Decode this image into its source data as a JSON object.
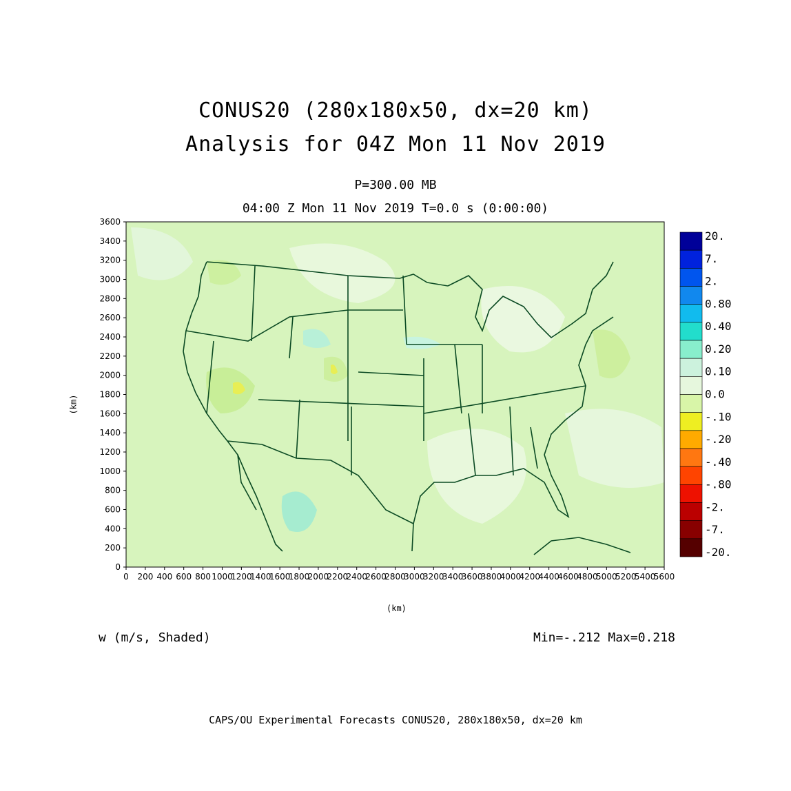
{
  "title": {
    "line1": "CONUS20 (280x180x50, dx=20 km)",
    "line2": "Analysis for 04Z Mon 11 Nov 2019"
  },
  "level": "P=300.00 MB",
  "time": "04:00 Z Mon 11 Nov 2019    T=0.0 s (0:00:00)",
  "variable": "w (m/s, Shaded)",
  "minmax": "Min=-.212 Max=0.218",
  "footer": "CAPS/OU Experimental Forecasts  CONUS20, 280x180x50, dx=20 km",
  "axes": {
    "xlabel": "(km)",
    "ylabel": "(km)",
    "x_ticks": [
      "0",
      "200",
      "400",
      "600",
      "800",
      "1000",
      "1200",
      "1400",
      "1600",
      "1800",
      "2000",
      "2200",
      "2400",
      "2600",
      "2800",
      "3000",
      "3200",
      "3400",
      "3600",
      "3800",
      "4000",
      "4200",
      "4400",
      "4600",
      "4800",
      "5000",
      "5200",
      "5400",
      "5600"
    ],
    "y_ticks": [
      "0",
      "200",
      "400",
      "600",
      "800",
      "1000",
      "1200",
      "1400",
      "1600",
      "1800",
      "2000",
      "2200",
      "2400",
      "2600",
      "2800",
      "3000",
      "3200",
      "3400",
      "3600"
    ],
    "xlim": [
      0,
      5600
    ],
    "ylim": [
      0,
      3600
    ]
  },
  "colorbar": {
    "labels": [
      "20.",
      "7.",
      "2.",
      "0.80",
      "0.40",
      "0.20",
      "0.10",
      "0.0",
      "-.10",
      "-.20",
      "-.40",
      "-.80",
      "-2.",
      "-7.",
      "-20."
    ],
    "colors": [
      "#000099",
      "#0022dd",
      "#0055ee",
      "#1188ee",
      "#11bbee",
      "#22ddcc",
      "#88eecc",
      "#ccf2dd",
      "#e6f7dd",
      "#d8f5a8",
      "#eeee22",
      "#ffaa00",
      "#ff7711",
      "#ff4400",
      "#ee1100",
      "#bb0000",
      "#880000",
      "#550000"
    ]
  },
  "map": {
    "land_color": "#d9f5c0",
    "ocean_color": "#d0f2b8",
    "border_color": "#004422"
  }
}
